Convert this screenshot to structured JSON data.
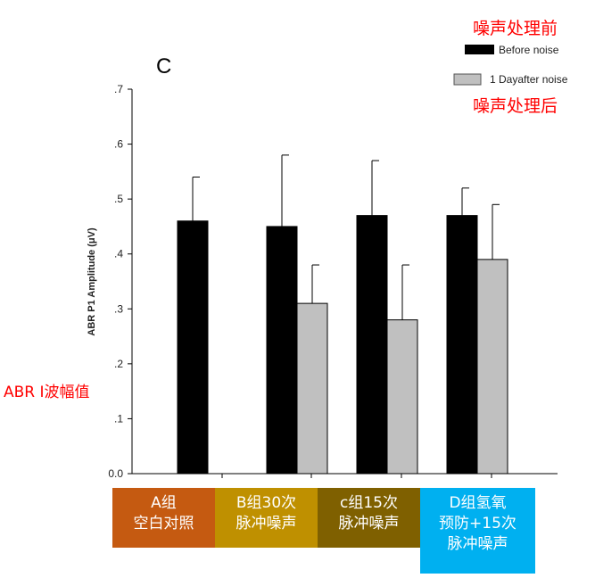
{
  "panel_label": "C",
  "annotations": {
    "before_cn": "噪声处理前",
    "after_cn": "噪声处理后",
    "ylabel_cn": "ABR I波幅值"
  },
  "groups": [
    {
      "line1": "A组",
      "line2": "空白对照",
      "line3": "",
      "color": "#c55a11"
    },
    {
      "line1": "B组30次",
      "line2": "脉冲噪声",
      "line3": "",
      "color": "#bf9000"
    },
    {
      "line1": "c组15次",
      "line2": "脉冲噪声",
      "line3": "",
      "color": "#7f6000"
    },
    {
      "line1": "D组氢氧",
      "line2": "预防+15次",
      "line3": "脉冲噪声",
      "color": "#00b0f0"
    }
  ],
  "chart_data": {
    "type": "bar",
    "ylabel": "ABR P1 Amplitude (μV)",
    "ylim": [
      0,
      0.7
    ],
    "yticks": [
      "0.0",
      ".1",
      ".2",
      ".3",
      ".4",
      ".5",
      ".6",
      ".7"
    ],
    "legend_position": "top-right",
    "grid": false,
    "series": [
      {
        "name": "Before noise",
        "color": "#000000",
        "values": [
          0.46,
          0.45,
          0.47,
          0.47
        ],
        "error_upper": [
          0.54,
          0.58,
          0.57,
          0.52
        ]
      },
      {
        "name": "1 Dayafter noise",
        "color": "#c0c0c0",
        "values": [
          null,
          0.31,
          0.28,
          0.39
        ],
        "error_upper": [
          null,
          0.38,
          0.38,
          0.49
        ]
      }
    ]
  }
}
